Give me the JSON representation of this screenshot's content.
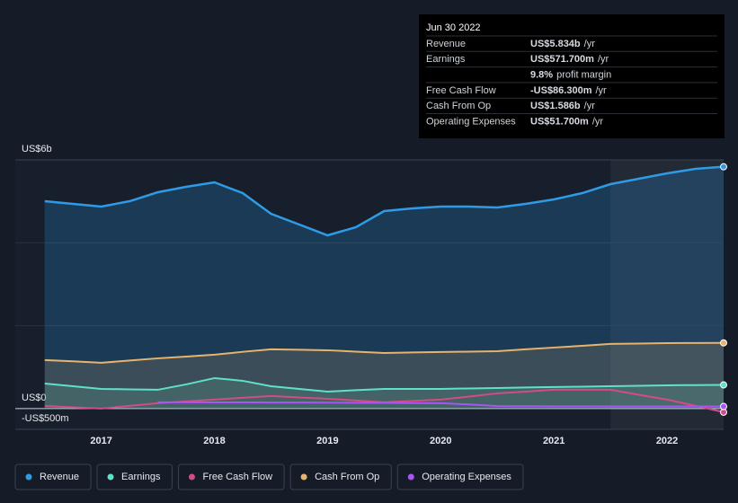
{
  "chart_data": {
    "type": "area-line",
    "x": [
      2016.5,
      2016.75,
      2017,
      2017.25,
      2017.5,
      2017.75,
      2018,
      2018.25,
      2018.5,
      2018.75,
      2019,
      2019.25,
      2019.5,
      2019.75,
      2020,
      2020.25,
      2020.5,
      2020.75,
      2021,
      2021.25,
      2021.5,
      2021.75,
      2022,
      2022.25,
      2022.5
    ],
    "xlim": [
      2016.24,
      2022.5
    ],
    "xticks": [
      2017,
      2018,
      2019,
      2020,
      2021,
      2022
    ],
    "ylim": [
      -500,
      6000
    ],
    "yticks": [
      {
        "value": 6000,
        "label": "US$6b"
      },
      {
        "value": 0,
        "label": "US$0"
      },
      {
        "value": -500,
        "label": "-US$500m"
      }
    ],
    "grid_values": [
      4000,
      2000
    ],
    "highlight_start": 2021.5,
    "series": [
      {
        "name": "Revenue",
        "color": "#2f9be6",
        "fill": true,
        "values": [
          5003,
          4938,
          4873,
          5003,
          5220,
          5350,
          5458,
          5198,
          4700,
          4440,
          4180,
          4375,
          4765,
          4830,
          4873,
          4873,
          4852,
          4938,
          5046,
          5198,
          5415,
          5545,
          5675,
          5783,
          5834
        ]
      },
      {
        "name": "Earnings",
        "color": "#5fe0c9",
        "fill": true,
        "values": [
          606,
          540,
          476,
          465,
          455,
          585,
          736,
          671,
          541,
          475,
          411,
          445,
          476,
          476,
          476,
          487,
          498,
          509,
          520,
          530,
          541,
          552,
          563,
          568,
          571.7
        ]
      },
      {
        "name": "Free Cash Flow",
        "color": "#d24c86",
        "fill": false,
        "values": [
          65,
          30,
          0,
          65,
          130,
          175,
          217,
          260,
          303,
          270,
          238,
          195,
          152,
          185,
          217,
          290,
          368,
          410,
          455,
          455,
          455,
          335,
          217,
          70,
          -86.3
        ]
      },
      {
        "name": "Cash From Op",
        "color": "#e8b36c",
        "fill": true,
        "values": [
          1170,
          1140,
          1105,
          1160,
          1213,
          1255,
          1300,
          1370,
          1430,
          1420,
          1408,
          1375,
          1343,
          1355,
          1365,
          1375,
          1386,
          1430,
          1473,
          1515,
          1560,
          1570,
          1581,
          1584,
          1586
        ]
      },
      {
        "name": "Operating Expenses",
        "color": "#a855f7",
        "fill": false,
        "values": [
          null,
          null,
          null,
          null,
          152,
          152,
          150,
          150,
          148,
          148,
          145,
          140,
          138,
          135,
          130,
          100,
          60,
          58,
          55,
          54,
          53,
          53,
          52,
          52,
          51.7
        ]
      }
    ]
  },
  "tooltip": {
    "date": "Jun 30 2022",
    "rows": [
      {
        "label": "Revenue",
        "value": "US$5.834b",
        "unit": "/yr",
        "color": "#2f9be6"
      },
      {
        "label": "Earnings",
        "value": "US$571.700m",
        "unit": "/yr",
        "color": "#5fe0c9"
      },
      {
        "label": null,
        "value": "9.8%",
        "unit": "profit margin",
        "color": "#ffffff"
      },
      {
        "label": "Free Cash Flow",
        "value": "-US$86.300m",
        "unit": "/yr",
        "color": "#e5484d"
      },
      {
        "label": "Cash From Op",
        "value": "US$1.586b",
        "unit": "/yr",
        "color": "#e8b36c"
      },
      {
        "label": "Operating Expenses",
        "value": "US$51.700m",
        "unit": "/yr",
        "color": "#a855f7"
      }
    ]
  }
}
